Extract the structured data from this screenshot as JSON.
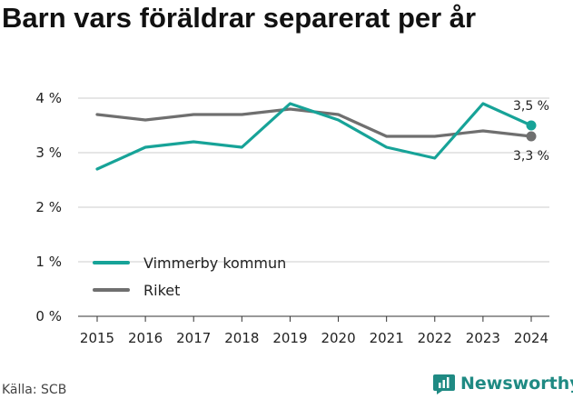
{
  "title": "Barn vars föräldrar separerat per år",
  "source": "Källa: SCB",
  "brand": "Newsworthy",
  "colors": {
    "vimmerby": "#17a398",
    "riket": "#6f6f6f",
    "brand": "#1f8a83",
    "grid": "#cccccc"
  },
  "chart_data": {
    "type": "line",
    "x": [
      "2015",
      "2016",
      "2017",
      "2018",
      "2019",
      "2020",
      "2021",
      "2022",
      "2023",
      "2024"
    ],
    "ylim": [
      0,
      4
    ],
    "yticks": [
      0,
      1,
      2,
      3,
      4
    ],
    "ytick_labels": [
      "0 %",
      "1 %",
      "2 %",
      "3 %",
      "4 %"
    ],
    "grid": "horizontal",
    "legend_position": "lower-left",
    "series": [
      {
        "name": "Vimmerby kommun",
        "color": "#17a398",
        "values": [
          2.7,
          3.1,
          3.2,
          3.1,
          3.9,
          3.6,
          3.1,
          2.9,
          3.9,
          3.5
        ],
        "end_label": "3,5 %"
      },
      {
        "name": "Riket",
        "color": "#6f6f6f",
        "values": [
          3.7,
          3.6,
          3.7,
          3.7,
          3.8,
          3.7,
          3.3,
          3.3,
          3.4,
          3.3
        ],
        "end_label": "3,3 %"
      }
    ]
  }
}
